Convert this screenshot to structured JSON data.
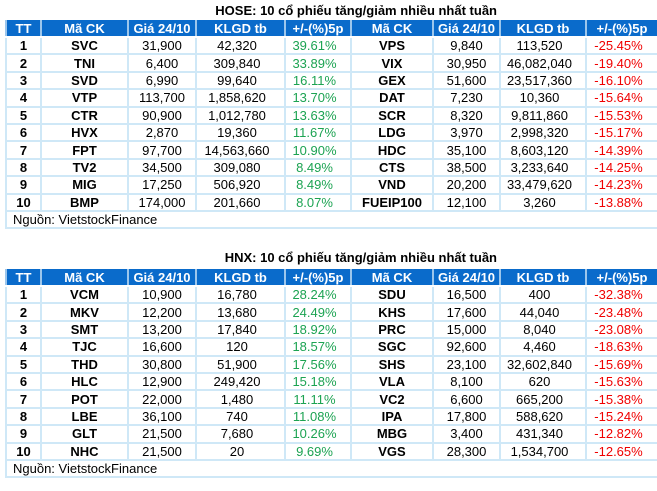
{
  "headers": [
    "TT",
    "Mã CK",
    "Giá 24/10",
    "KLGD tb",
    "+/-(%)5p",
    "Mã CK",
    "Giá 24/10",
    "KLGD tb",
    "+/-(%)5p"
  ],
  "source": "Nguồn: VietstockFinance",
  "colors": {
    "header": "#0a6bcb",
    "up": "#1ca352",
    "down": "#f00000",
    "grid": "#cfe8f7"
  },
  "hose": {
    "title": "HOSE: 10 cổ phiếu tăng/giảm nhiều nhất tuần",
    "rows": [
      [
        "1",
        "SVC",
        "31,900",
        "42,320",
        "39.61%",
        "VPS",
        "9,840",
        "113,520",
        "-25.45%"
      ],
      [
        "2",
        "TNI",
        "6,400",
        "309,840",
        "33.89%",
        "VIX",
        "30,950",
        "46,082,040",
        "-19.40%"
      ],
      [
        "3",
        "SVD",
        "6,990",
        "99,640",
        "16.11%",
        "GEX",
        "51,600",
        "23,517,360",
        "-16.10%"
      ],
      [
        "4",
        "VTP",
        "113,700",
        "1,858,620",
        "13.70%",
        "DAT",
        "7,230",
        "10,360",
        "-15.64%"
      ],
      [
        "5",
        "CTR",
        "90,900",
        "1,012,780",
        "13.63%",
        "SCR",
        "8,320",
        "9,811,860",
        "-15.53%"
      ],
      [
        "6",
        "HVX",
        "2,870",
        "19,360",
        "11.67%",
        "LDG",
        "3,970",
        "2,998,320",
        "-15.17%"
      ],
      [
        "7",
        "FPT",
        "97,700",
        "14,563,660",
        "10.90%",
        "HDC",
        "35,100",
        "8,603,120",
        "-14.39%"
      ],
      [
        "8",
        "TV2",
        "34,500",
        "309,080",
        "8.49%",
        "CTS",
        "38,500",
        "3,233,640",
        "-14.25%"
      ],
      [
        "9",
        "MIG",
        "17,250",
        "506,920",
        "8.49%",
        "VND",
        "20,200",
        "33,479,620",
        "-14.23%"
      ],
      [
        "10",
        "BMP",
        "174,000",
        "201,660",
        "8.07%",
        "FUEIP100",
        "12,100",
        "3,260",
        "-13.88%"
      ]
    ]
  },
  "hnx": {
    "title": "HNX: 10 cổ phiếu tăng/giảm nhiều nhất tuần",
    "rows": [
      [
        "1",
        "VCM",
        "10,900",
        "16,780",
        "28.24%",
        "SDU",
        "16,500",
        "400",
        "-32.38%"
      ],
      [
        "2",
        "MKV",
        "12,200",
        "13,680",
        "24.49%",
        "KHS",
        "17,600",
        "44,040",
        "-23.48%"
      ],
      [
        "3",
        "SMT",
        "13,200",
        "17,840",
        "18.92%",
        "PRC",
        "15,000",
        "8,040",
        "-23.08%"
      ],
      [
        "4",
        "TJC",
        "16,600",
        "120",
        "18.57%",
        "SGC",
        "92,600",
        "4,460",
        "-18.63%"
      ],
      [
        "5",
        "THD",
        "30,800",
        "51,900",
        "17.56%",
        "SHS",
        "23,100",
        "32,602,840",
        "-15.69%"
      ],
      [
        "6",
        "HLC",
        "12,900",
        "249,420",
        "15.18%",
        "VLA",
        "8,100",
        "620",
        "-15.63%"
      ],
      [
        "7",
        "POT",
        "22,000",
        "1,480",
        "11.11%",
        "VC2",
        "6,600",
        "665,200",
        "-15.38%"
      ],
      [
        "8",
        "LBE",
        "36,100",
        "740",
        "11.08%",
        "IPA",
        "17,800",
        "588,620",
        "-15.24%"
      ],
      [
        "9",
        "GLT",
        "21,500",
        "7,680",
        "10.26%",
        "MBG",
        "3,400",
        "431,340",
        "-12.82%"
      ],
      [
        "10",
        "NHC",
        "21,500",
        "20",
        "9.69%",
        "VGS",
        "28,300",
        "1,534,700",
        "-12.65%"
      ]
    ]
  }
}
